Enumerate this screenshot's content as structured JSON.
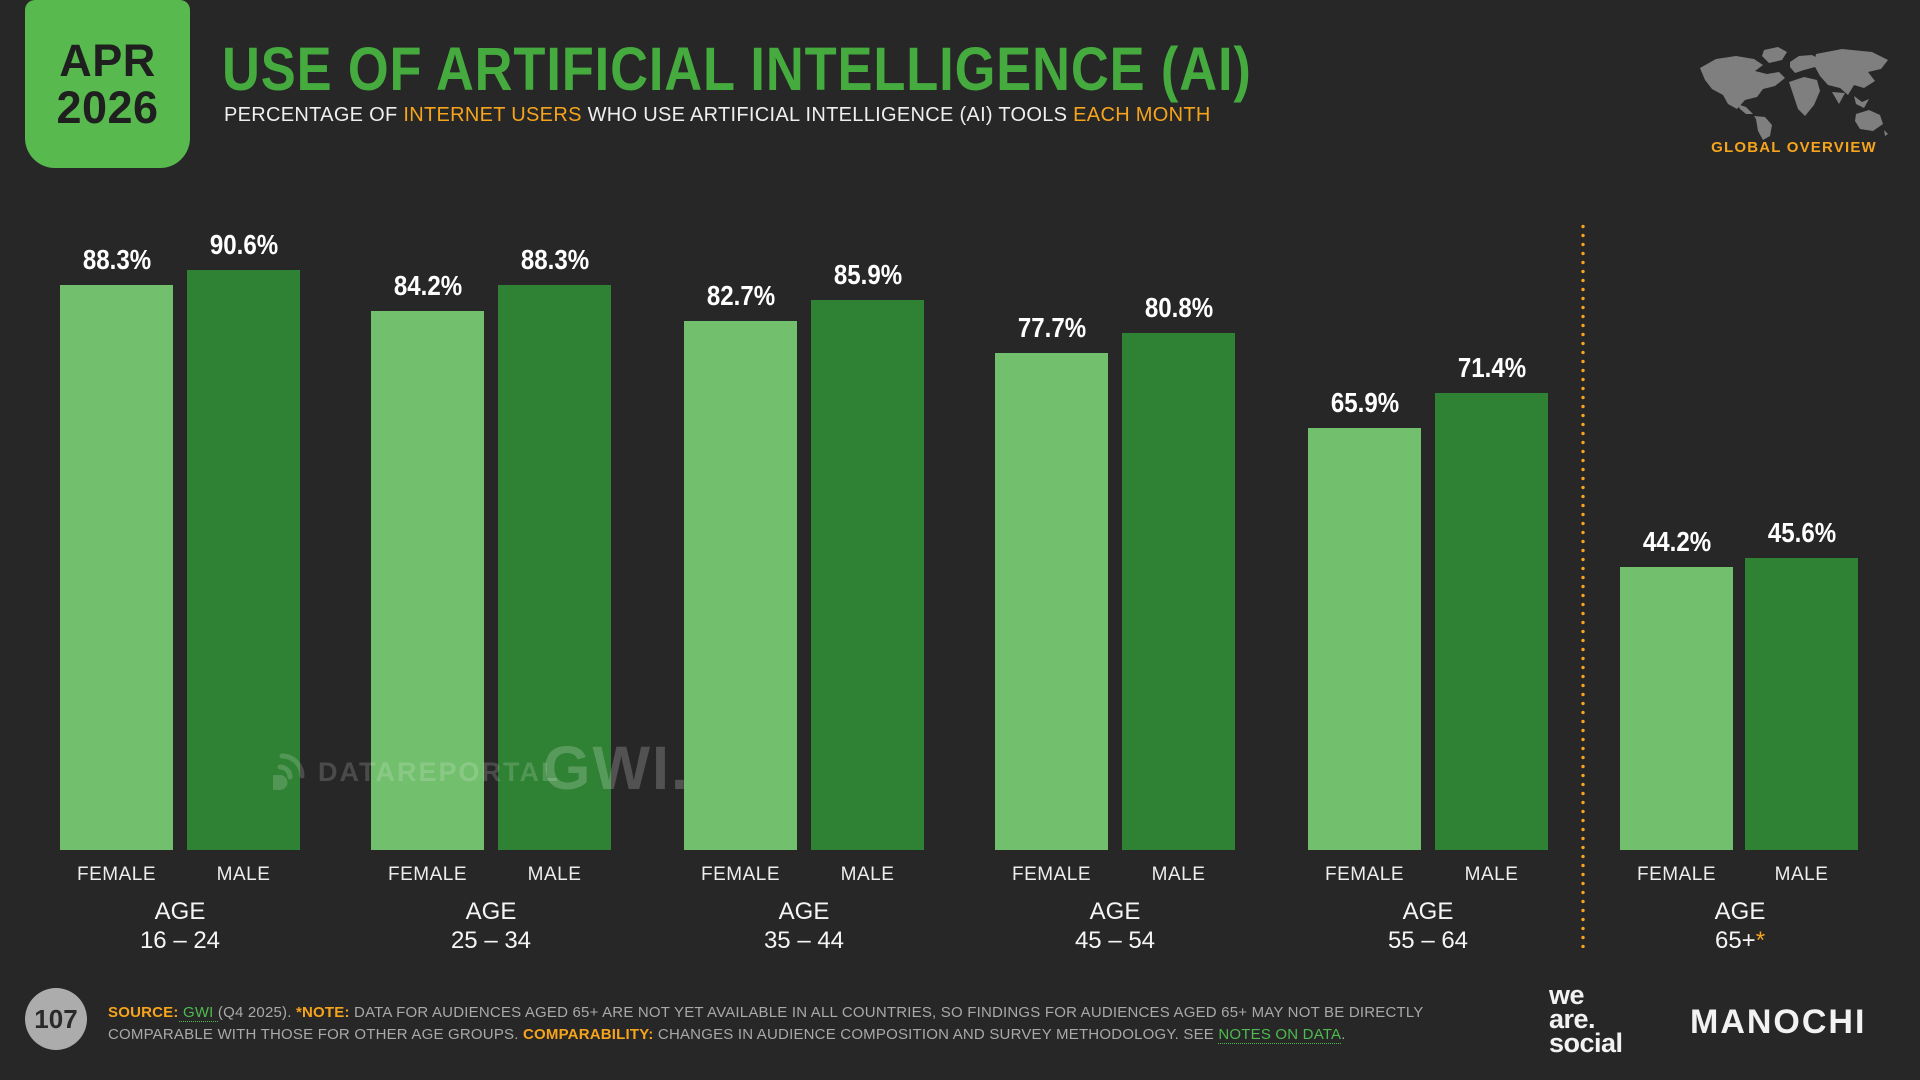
{
  "badge": {
    "month": "APR",
    "year": "2026"
  },
  "header": {
    "title": "USE OF ARTIFICIAL INTELLIGENCE (AI)",
    "subtitle": {
      "part1": "PERCENTAGE OF ",
      "highlight1": "INTERNET USERS",
      "part2": " WHO USE ARTIFICIAL INTELLIGENCE (AI) TOOLS ",
      "highlight2": "EACH MONTH"
    },
    "region_label": "GLOBAL OVERVIEW"
  },
  "watermark": {
    "brand1": "DATAREPORTAL",
    "brand2": "GWI."
  },
  "chart_data": {
    "type": "bar",
    "title": "USE OF ARTIFICIAL INTELLIGENCE (AI)",
    "unit": "%",
    "category_prefix": "AGE",
    "categories": [
      "16 – 24",
      "25 – 34",
      "35 – 44",
      "45 – 54",
      "55 – 64",
      "65+"
    ],
    "last_category_marker": "*",
    "series": [
      {
        "name": "FEMALE",
        "color": "#72BF6D",
        "values": [
          88.3,
          84.2,
          82.7,
          77.7,
          65.9,
          44.2
        ]
      },
      {
        "name": "MALE",
        "color": "#2F8133",
        "values": [
          90.6,
          88.3,
          85.9,
          80.8,
          71.4,
          45.6
        ]
      }
    ],
    "ylim": [
      0,
      100
    ],
    "grid": false,
    "value_labels": true,
    "separator": {
      "before_category_index": 5,
      "style": "dotted",
      "color": "#F6A41C"
    }
  },
  "footer": {
    "page_number": "107",
    "note": {
      "source_label": "SOURCE:",
      "source_link": " GWI ",
      "source_rest": " (Q4 2025). ",
      "note_label": "*NOTE:",
      "note_text": " DATA FOR AUDIENCES AGED 65+ ARE NOT YET AVAILABLE IN ALL COUNTRIES, SO FINDINGS FOR AUDIENCES AGED 65+ MAY NOT BE DIRECTLY COMPARABLE WITH THOSE FOR OTHER AGE GROUPS. ",
      "comparability_label": "COMPARABILITY:",
      "comparability_text": " CHANGES IN AUDIENCE COMPOSITION AND SURVEY METHODOLOGY. SEE ",
      "notes_link": "NOTES ON DATA",
      "period": "."
    },
    "logos": {
      "we_are_social": [
        "we",
        "are.",
        "social"
      ],
      "manochi": "MANOCHI"
    }
  },
  "colors": {
    "background": "#272727",
    "title_green": "#45AB3F",
    "badge_green": "#58BA4E",
    "bar_female": "#72BF6D",
    "bar_male": "#2F8133",
    "accent_orange": "#F6A41C",
    "map_gray": "#7F7F7F"
  }
}
